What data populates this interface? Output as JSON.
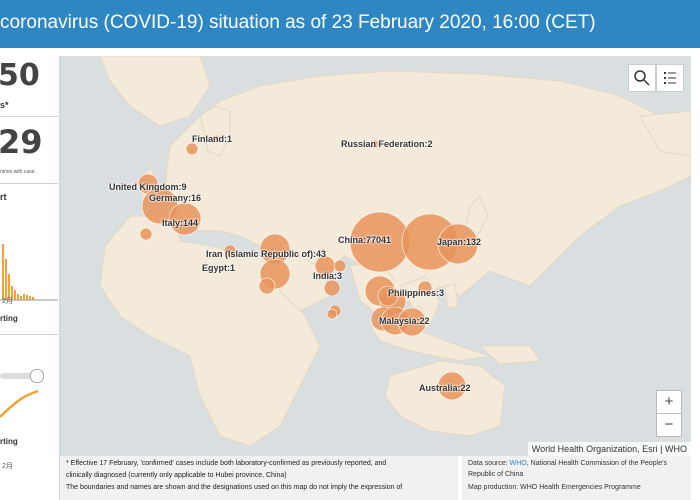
{
  "header": {
    "title": "coronavirus (COVID-19) situation as of 23 February 2020, 16:00 (CET)"
  },
  "left_panel": {
    "total_cases_partial": "50",
    "total_cases_caption": "s*",
    "countries_partial": "29",
    "countries_caption": "ntries with case:",
    "chart1_title_partial": "rt",
    "chart1_xlabel": "2月",
    "chart1_caption": "rting",
    "chart2_caption": "rting",
    "chart2_xlabel": "2月"
  },
  "map": {
    "labels": {
      "finland": "Finland:1",
      "russia": "Russian Federation:2",
      "uk": "United Kingdom:9",
      "germany": "Germany:16",
      "italy": "Italy:144",
      "iran": "Iran (Islamic Republic of):43",
      "egypt": "Egypt:1",
      "india": "India:3",
      "china": "China:77041",
      "japan": "Japan:132",
      "philippines": "Philippines:3",
      "malaysia": "Malaysia:22",
      "australia": "Australia:22"
    },
    "zoom_in": "+",
    "zoom_out": "−",
    "attribution": "World Health Organization, Esri | WHO",
    "bubble_color": "#e8945a",
    "land_color": "#f3ead9",
    "water_color": "#d9dee1"
  },
  "notes": {
    "line1": "* Effective 17 February, 'confirmed' cases include both laboratory-confirmed as previously reported, and",
    "line2": "clinically diagnosed (currently only applicable to Hubei province, China)",
    "line3": "The boundaries and names are shown and the designations used on this map do not imply the expression of"
  },
  "source": {
    "label": "Data source: ",
    "link": "WHO",
    "rest": ", National Health Commission of the People's Republic of China",
    "production": "Map production: WHO Health Emergencies Programme"
  }
}
